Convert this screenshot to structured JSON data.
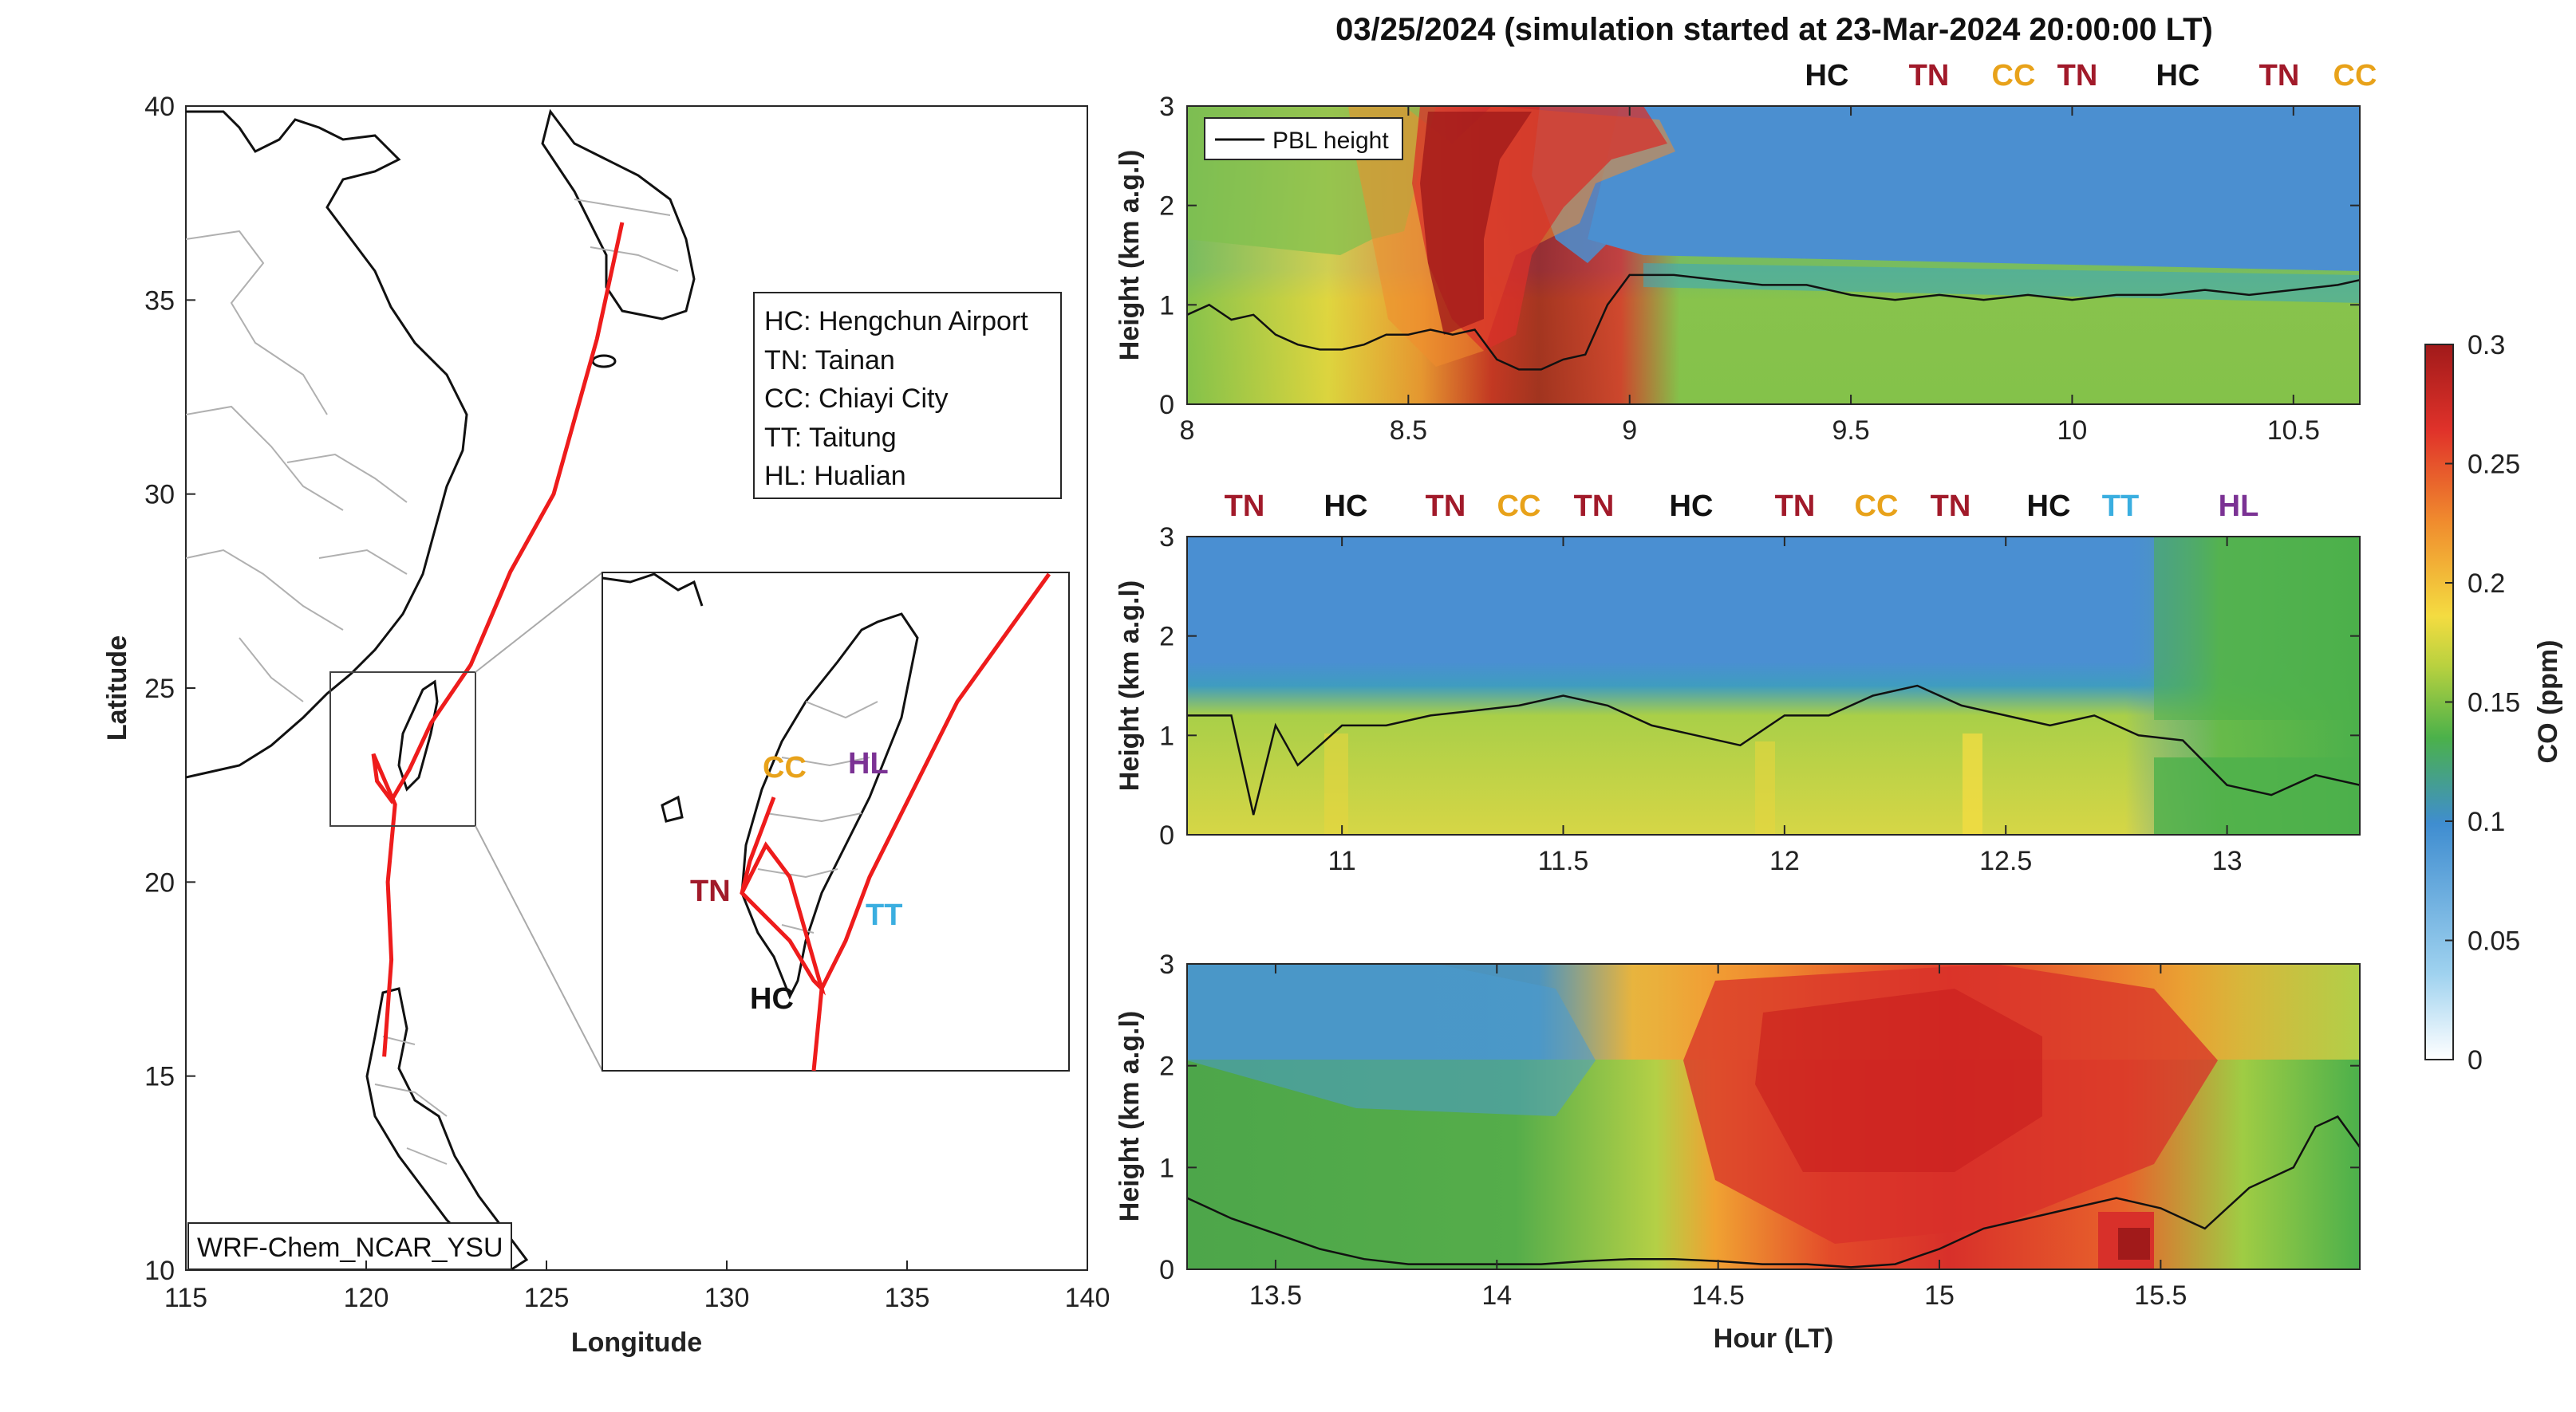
{
  "figure": {
    "title": "03/25/2024 (simulation started at 23-Mar-2024 20:00:00 LT)"
  },
  "map": {
    "xlabel": "Longitude",
    "ylabel": "Latitude",
    "xticks": [
      "115",
      "120",
      "125",
      "130",
      "135",
      "140"
    ],
    "yticks": [
      "10",
      "15",
      "20",
      "25",
      "30",
      "35",
      "40"
    ],
    "legend": [
      "HC: Hengchun Airport",
      "TN: Tainan",
      "CC: Chiayi City",
      "TT: Taitung",
      "HL: Hualian"
    ],
    "model_label": "WRF-Chem_NCAR_YSU",
    "inset_labels": [
      {
        "text": "CC",
        "color": "#e8a21a"
      },
      {
        "text": "HL",
        "color": "#7b3294"
      },
      {
        "text": "TN",
        "color": "#a11a2a"
      },
      {
        "text": "TT",
        "color": "#3aaee0"
      },
      {
        "text": "HC",
        "color": "#111111"
      }
    ]
  },
  "panels": [
    {
      "ylabel": "Height (km a.g.l)",
      "xticks": [
        "8",
        "8.5",
        "9",
        "9.5",
        "10",
        "10.5"
      ],
      "yticks": [
        "0",
        "1",
        "2",
        "3"
      ],
      "legend": "PBL height",
      "sites": [
        {
          "t": "HC",
          "c": "#111111"
        },
        {
          "t": "TN",
          "c": "#a11a2a"
        },
        {
          "t": "CC",
          "c": "#e8a21a"
        },
        {
          "t": "TN",
          "c": "#a11a2a"
        },
        {
          "t": "HC",
          "c": "#111111"
        },
        {
          "t": "TN",
          "c": "#a11a2a"
        },
        {
          "t": "CC",
          "c": "#e8a21a"
        }
      ]
    },
    {
      "ylabel": "Height (km a.g.l)",
      "xticks": [
        "11",
        "11.5",
        "12",
        "12.5",
        "13"
      ],
      "yticks": [
        "0",
        "1",
        "2",
        "3"
      ],
      "sites": [
        {
          "t": "TN",
          "c": "#a11a2a"
        },
        {
          "t": "HC",
          "c": "#111111"
        },
        {
          "t": "TN",
          "c": "#a11a2a"
        },
        {
          "t": "CC",
          "c": "#e8a21a"
        },
        {
          "t": "TN",
          "c": "#a11a2a"
        },
        {
          "t": "HC",
          "c": "#111111"
        },
        {
          "t": "TN",
          "c": "#a11a2a"
        },
        {
          "t": "CC",
          "c": "#e8a21a"
        },
        {
          "t": "TN",
          "c": "#a11a2a"
        },
        {
          "t": "HC",
          "c": "#111111"
        },
        {
          "t": "TT",
          "c": "#3aaee0"
        },
        {
          "t": "HL",
          "c": "#7b3294"
        }
      ]
    },
    {
      "ylabel": "Height (km a.g.l)",
      "xlabel": "Hour (LT)",
      "xticks": [
        "13.5",
        "14",
        "14.5",
        "15",
        "15.5"
      ],
      "yticks": [
        "0",
        "1",
        "2",
        "3"
      ]
    }
  ],
  "colorbar": {
    "label": "CO (ppm)",
    "ticks": [
      "0",
      "0.05",
      "0.1",
      "0.15",
      "0.2",
      "0.25",
      "0.3"
    ]
  },
  "chart_data": [
    {
      "type": "line",
      "title": "",
      "xlabel": "Longitude",
      "ylabel": "Latitude",
      "xlim": [
        115,
        140
      ],
      "ylim": [
        10,
        40
      ],
      "series": [
        {
          "values": [
            [
              127.1,
              37.0
            ],
            [
              126.4,
              34.0
            ],
            [
              125.2,
              30.0
            ],
            [
              124.0,
              28.0
            ],
            [
              122.9,
              25.6
            ],
            [
              121.8,
              24.1
            ],
            [
              121.2,
              22.9
            ],
            [
              120.7,
              22.1
            ],
            [
              120.3,
              22.6
            ],
            [
              120.2,
              23.3
            ],
            [
              120.8,
              22.0
            ],
            [
              120.6,
              20.0
            ],
            [
              120.7,
              18.0
            ],
            [
              120.5,
              15.5
            ]
          ]
        }
      ]
    },
    {
      "type": "line",
      "title": "",
      "xlabel": "",
      "ylabel": "Height (km a.g.l)",
      "xlim": [
        8,
        10.65
      ],
      "ylim": [
        0,
        3
      ],
      "series": [
        {
          "name": "PBL height",
          "x": [
            8.0,
            8.05,
            8.1,
            8.15,
            8.2,
            8.25,
            8.3,
            8.35,
            8.4,
            8.45,
            8.5,
            8.55,
            8.6,
            8.65,
            8.7,
            8.75,
            8.8,
            8.85,
            8.9,
            8.95,
            9.0,
            9.1,
            9.2,
            9.3,
            9.4,
            9.5,
            9.6,
            9.7,
            9.8,
            9.9,
            10.0,
            10.1,
            10.2,
            10.3,
            10.4,
            10.5,
            10.6,
            10.65
          ],
          "y": [
            0.9,
            1.0,
            0.85,
            0.9,
            0.7,
            0.6,
            0.55,
            0.55,
            0.6,
            0.7,
            0.7,
            0.75,
            0.7,
            0.75,
            0.45,
            0.35,
            0.35,
            0.45,
            0.5,
            1.0,
            1.3,
            1.3,
            1.25,
            1.2,
            1.2,
            1.1,
            1.05,
            1.1,
            1.05,
            1.1,
            1.05,
            1.1,
            1.1,
            1.15,
            1.1,
            1.15,
            1.2,
            1.25
          ]
        }
      ]
    },
    {
      "type": "line",
      "title": "",
      "xlabel": "",
      "ylabel": "Height (km a.g.l)",
      "xlim": [
        10.65,
        13.3
      ],
      "ylim": [
        0,
        3
      ],
      "series": [
        {
          "name": "PBL height",
          "x": [
            10.65,
            10.75,
            10.8,
            10.85,
            10.9,
            11.0,
            11.1,
            11.2,
            11.3,
            11.4,
            11.5,
            11.6,
            11.7,
            11.8,
            11.9,
            12.0,
            12.1,
            12.2,
            12.3,
            12.4,
            12.5,
            12.6,
            12.7,
            12.8,
            12.9,
            13.0,
            13.1,
            13.2,
            13.3
          ],
          "y": [
            1.2,
            1.2,
            0.2,
            1.1,
            0.7,
            1.1,
            1.1,
            1.2,
            1.25,
            1.3,
            1.4,
            1.3,
            1.1,
            1.0,
            0.9,
            1.2,
            1.2,
            1.4,
            1.5,
            1.3,
            1.2,
            1.1,
            1.2,
            1.0,
            0.95,
            0.5,
            0.4,
            0.6,
            0.5
          ]
        }
      ]
    },
    {
      "type": "line",
      "title": "",
      "xlabel": "Hour (LT)",
      "ylabel": "Height (km a.g.l)",
      "xlim": [
        13.3,
        15.95
      ],
      "ylim": [
        0,
        3
      ],
      "series": [
        {
          "name": "PBL height",
          "x": [
            13.3,
            13.4,
            13.5,
            13.6,
            13.7,
            13.8,
            13.9,
            14.0,
            14.1,
            14.2,
            14.3,
            14.4,
            14.5,
            14.6,
            14.7,
            14.8,
            14.9,
            15.0,
            15.1,
            15.2,
            15.3,
            15.4,
            15.5,
            15.6,
            15.7,
            15.8,
            15.85,
            15.9,
            15.95
          ],
          "y": [
            0.7,
            0.5,
            0.35,
            0.2,
            0.1,
            0.05,
            0.05,
            0.05,
            0.05,
            0.08,
            0.1,
            0.1,
            0.08,
            0.05,
            0.05,
            0.02,
            0.05,
            0.2,
            0.4,
            0.5,
            0.6,
            0.7,
            0.6,
            0.4,
            0.8,
            1.0,
            1.4,
            1.5,
            1.2
          ]
        }
      ]
    },
    {
      "type": "heatmap",
      "title": "",
      "xlabel": "Hour (LT)",
      "ylabel": "Height (km a.g.l)",
      "colorbar_label": "CO (ppm)",
      "clim": [
        0,
        0.3
      ],
      "xlim": [
        8,
        15.95
      ],
      "ylim": [
        0,
        3
      ]
    }
  ]
}
